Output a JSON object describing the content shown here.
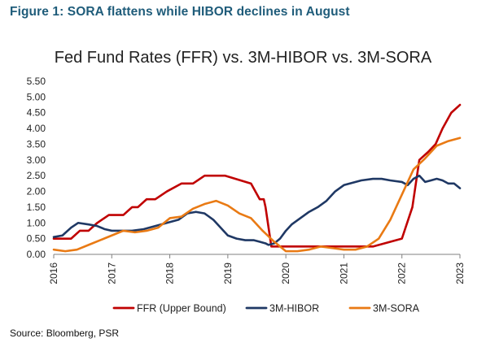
{
  "figure_title": "Figure 1: SORA flattens while HIBOR declines in August",
  "source": "Source: Bloomberg, PSR",
  "colors": {
    "figure_title": "#1f5c7a"
  },
  "chart_data": {
    "type": "line",
    "title": "Fed Fund Rates (FFR) vs. 3M-HIBOR vs. 3M-SORA",
    "xlabel": "",
    "ylabel": "",
    "xlim": [
      2016.0,
      2023.0
    ],
    "ylim": [
      0,
      5.5
    ],
    "y_ticks": [
      "0.00",
      "0.50",
      "1.00",
      "1.50",
      "2.00",
      "2.50",
      "3.00",
      "3.50",
      "4.00",
      "4.50",
      "5.00",
      "5.50"
    ],
    "x_ticks": [
      "2016",
      "2017",
      "2018",
      "2019",
      "2020",
      "2021",
      "2022",
      "2023"
    ],
    "grid": false,
    "legend_position": "bottom",
    "series": [
      {
        "name": "FFR (Upper Bound)",
        "color": "#c00000",
        "x": [
          2016.0,
          2016.25,
          2016.3,
          2016.45,
          2016.6,
          2016.75,
          2016.95,
          2017.2,
          2017.35,
          2017.45,
          2017.6,
          2017.75,
          2017.95,
          2018.2,
          2018.4,
          2018.6,
          2018.8,
          2018.95,
          2019.4,
          2019.55,
          2019.62,
          2019.65,
          2019.75,
          2020.15,
          2020.2,
          2020.5,
          2021.0,
          2021.5,
          2022.0,
          2022.18,
          2022.3,
          2022.45,
          2022.58,
          2022.7,
          2022.85,
          2023.0
        ],
        "values": [
          0.5,
          0.5,
          0.5,
          0.75,
          0.75,
          1.0,
          1.25,
          1.25,
          1.5,
          1.5,
          1.75,
          1.75,
          2.0,
          2.25,
          2.25,
          2.5,
          2.5,
          2.5,
          2.25,
          1.75,
          1.75,
          1.5,
          0.25,
          0.25,
          0.25,
          0.25,
          0.25,
          0.25,
          0.5,
          1.5,
          3.0,
          3.25,
          3.5,
          4.0,
          4.5,
          4.75
        ]
      },
      {
        "name": "3M-HIBOR",
        "color": "#1f3864",
        "x": [
          2016.0,
          2016.15,
          2016.3,
          2016.42,
          2016.6,
          2016.75,
          2016.88,
          2017.0,
          2017.2,
          2017.35,
          2017.55,
          2017.75,
          2017.95,
          2018.15,
          2018.3,
          2018.45,
          2018.6,
          2018.75,
          2018.9,
          2019.0,
          2019.15,
          2019.3,
          2019.45,
          2019.55,
          2019.65,
          2019.7,
          2019.8,
          2019.9,
          2020.0,
          2020.1,
          2020.25,
          2020.4,
          2020.55,
          2020.7,
          2020.85,
          2021.0,
          2021.3,
          2021.5,
          2021.65,
          2021.8,
          2022.0,
          2022.1,
          2022.2,
          2022.3,
          2022.4,
          2022.5,
          2022.6,
          2022.7,
          2022.8,
          2022.9,
          2023.0
        ],
        "values": [
          0.55,
          0.6,
          0.85,
          1.0,
          0.95,
          0.9,
          0.8,
          0.75,
          0.75,
          0.75,
          0.8,
          0.9,
          1.0,
          1.1,
          1.3,
          1.35,
          1.3,
          1.1,
          0.8,
          0.6,
          0.5,
          0.45,
          0.45,
          0.4,
          0.35,
          0.3,
          0.35,
          0.5,
          0.75,
          0.95,
          1.15,
          1.35,
          1.5,
          1.7,
          2.0,
          2.2,
          2.35,
          2.4,
          2.4,
          2.35,
          2.3,
          2.2,
          2.4,
          2.5,
          2.3,
          2.35,
          2.4,
          2.35,
          2.25,
          2.25,
          2.1
        ]
      },
      {
        "name": "3M-SORA",
        "color": "#e97a14",
        "x": [
          2016.0,
          2016.2,
          2016.4,
          2016.6,
          2016.8,
          2017.0,
          2017.2,
          2017.4,
          2017.6,
          2017.8,
          2018.0,
          2018.2,
          2018.4,
          2018.6,
          2018.8,
          2019.0,
          2019.2,
          2019.4,
          2019.6,
          2019.8,
          2020.0,
          2020.2,
          2020.4,
          2020.6,
          2020.8,
          2021.0,
          2021.2,
          2021.4,
          2021.6,
          2021.8,
          2022.0,
          2022.2,
          2022.4,
          2022.6,
          2022.8,
          2023.0
        ],
        "values": [
          0.15,
          0.1,
          0.15,
          0.3,
          0.45,
          0.6,
          0.75,
          0.7,
          0.75,
          0.85,
          1.15,
          1.2,
          1.45,
          1.6,
          1.7,
          1.55,
          1.3,
          1.15,
          0.75,
          0.4,
          0.1,
          0.1,
          0.15,
          0.25,
          0.2,
          0.15,
          0.15,
          0.25,
          0.5,
          1.1,
          1.9,
          2.7,
          3.05,
          3.45,
          3.6,
          3.7
        ]
      }
    ]
  }
}
